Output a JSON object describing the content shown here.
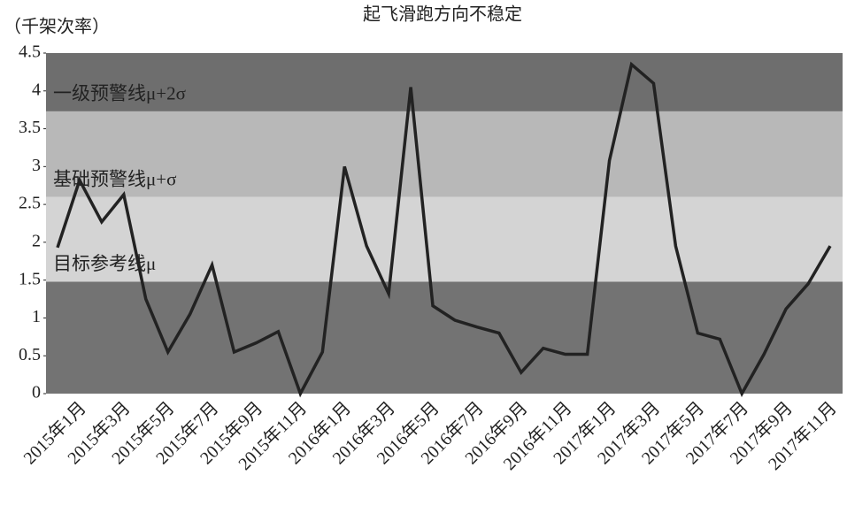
{
  "chart_data": {
    "type": "line",
    "title": "起飞滑跑方向不稳定",
    "y_axis_label": "（千架次率）",
    "categories": [
      "2015年1月",
      null,
      "2015年3月",
      null,
      "2015年5月",
      null,
      "2015年7月",
      null,
      "2015年9月",
      null,
      "2015年11月",
      null,
      "2016年1月",
      null,
      "2016年3月",
      null,
      "2016年5月",
      null,
      "2016年7月",
      null,
      "2016年9月",
      null,
      "2016年11月",
      null,
      "2017年1月",
      null,
      "2017年3月",
      null,
      "2017年5月",
      null,
      "2017年7月",
      null,
      "2017年9月",
      null,
      "2017年11月",
      null
    ],
    "series": [
      {
        "color": "#222222",
        "values": [
          1.93,
          2.82,
          2.27,
          2.63,
          1.25,
          0.55,
          1.05,
          1.7,
          0.55,
          0.67,
          0.82,
          0.0,
          0.55,
          3.0,
          1.95,
          1.32,
          4.05,
          1.16,
          0.97,
          0.88,
          0.8,
          0.28,
          0.6,
          0.52,
          0.52,
          3.08,
          4.35,
          4.1,
          1.95,
          0.8,
          0.72,
          0.0,
          0.52,
          1.12,
          1.45,
          1.95
        ]
      }
    ],
    "bands": [
      {
        "from": 0,
        "to": 1.48,
        "color": "#737373"
      },
      {
        "from": 1.48,
        "to": 2.6,
        "color": "#d4d4d4",
        "label": "目标参考线μ"
      },
      {
        "from": 2.6,
        "to": 3.73,
        "color": "#b8b8b8",
        "label": "基础预警线μ+σ"
      },
      {
        "from": 3.73,
        "to": 4.5,
        "color": "#6e6e6e",
        "label": "一级预警线μ+2σ"
      }
    ],
    "ylim": [
      0,
      4.5
    ],
    "yticks": [
      0,
      0.5,
      1,
      1.5,
      2,
      2.5,
      3,
      3.5,
      4,
      4.5
    ]
  }
}
